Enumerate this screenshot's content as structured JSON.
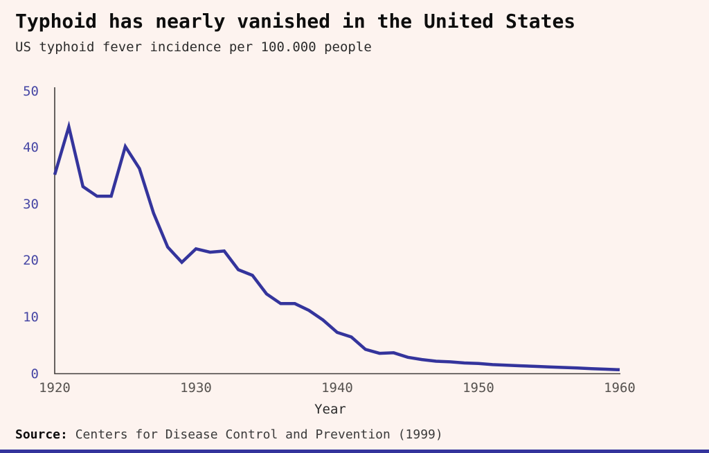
{
  "header": {
    "title": "Typhoid has nearly vanished in the United States",
    "subtitle": "US typhoid fever incidence per 100.000 people"
  },
  "chart_data": {
    "type": "line",
    "title": "Typhoid has nearly vanished in the United States",
    "subtitle": "US typhoid fever incidence per 100.000 people",
    "xlabel": "Year",
    "ylabel": "",
    "xlim": [
      1920,
      1960
    ],
    "ylim": [
      0,
      50
    ],
    "xticks": [
      1920,
      1930,
      1940,
      1950,
      1960
    ],
    "yticks": [
      0,
      10,
      20,
      30,
      40,
      50
    ],
    "grid": false,
    "legend_position": "none",
    "x": [
      1920,
      1921,
      1922,
      1923,
      1924,
      1925,
      1926,
      1927,
      1928,
      1929,
      1930,
      1931,
      1932,
      1933,
      1934,
      1935,
      1936,
      1937,
      1938,
      1939,
      1940,
      1941,
      1942,
      1943,
      1944,
      1945,
      1946,
      1947,
      1948,
      1949,
      1950,
      1951,
      1952,
      1953,
      1954,
      1955,
      1956,
      1957,
      1958,
      1959,
      1960
    ],
    "series": [
      {
        "name": "US typhoid fever incidence per 100.000 people",
        "color": "#34349c",
        "values": [
          35.2,
          43.7,
          33.1,
          31.4,
          31.4,
          40.2,
          36.3,
          28.4,
          22.4,
          19.7,
          22.1,
          21.5,
          21.7,
          18.4,
          17.4,
          14.1,
          12.4,
          12.4,
          11.2,
          9.5,
          7.3,
          6.5,
          4.3,
          3.6,
          3.7,
          2.9,
          2.5,
          2.2,
          2.1,
          1.9,
          1.8,
          1.6,
          1.5,
          1.4,
          1.3,
          1.2,
          1.1,
          1.0,
          0.9,
          0.8,
          0.7
        ]
      }
    ],
    "colors": {
      "background": "#fdf3ef",
      "line": "#34349c",
      "axis": "#403d3b",
      "ytick_labels": "#4646a4",
      "xtick_labels": "#55514e"
    }
  },
  "footer": {
    "source_label": "Source:",
    "source_text": "Centers for Disease Control and Prevention (1999)",
    "accent_bar_color": "#34349c"
  }
}
